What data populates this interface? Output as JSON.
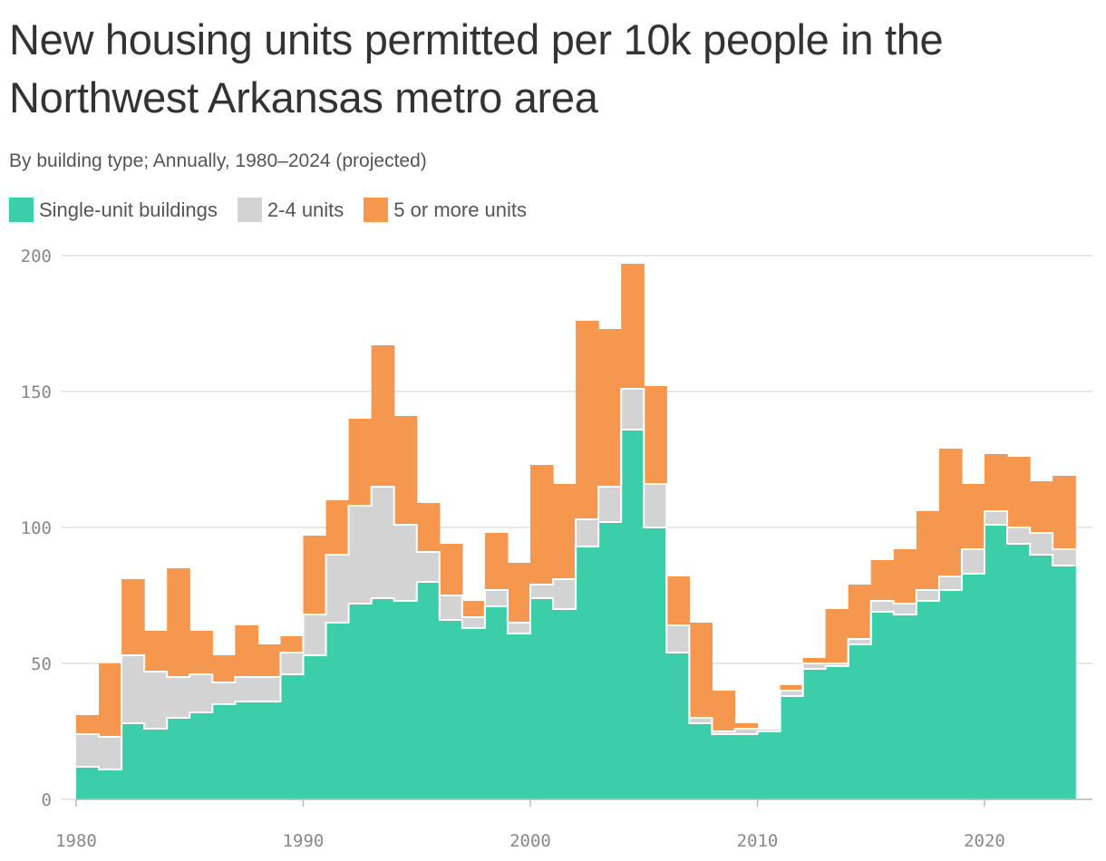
{
  "title": "New housing units permitted per 10k people in the Northwest Arkansas metro area",
  "subtitle": "By building type; Annually, 1980–2024 (projected)",
  "colors": {
    "single": "#3ccea9",
    "two_to_four": "#d3d3d3",
    "five_plus": "#f5974e",
    "grid": "#e0e0e0",
    "axis": "#bbbbbb"
  },
  "chart_data": {
    "type": "area",
    "step": true,
    "stacked": true,
    "title": "New housing units permitted per 10k people in the Northwest Arkansas metro area",
    "subtitle": "By building type; Annually, 1980–2024 (projected)",
    "xlabel": "",
    "ylabel": "",
    "ylim": [
      0,
      200
    ],
    "xlim": [
      1980,
      2024.5
    ],
    "yticks": [
      0,
      50,
      100,
      150,
      200
    ],
    "xticks": [
      1980,
      1990,
      2000,
      2010,
      2020
    ],
    "grid": true,
    "legend_position": "top-left",
    "x": [
      1980,
      1981,
      1982,
      1983,
      1984,
      1985,
      1986,
      1987,
      1988,
      1989,
      1990,
      1991,
      1992,
      1993,
      1994,
      1995,
      1996,
      1997,
      1998,
      1999,
      2000,
      2001,
      2002,
      2003,
      2004,
      2005,
      2006,
      2007,
      2008,
      2009,
      2010,
      2011,
      2012,
      2013,
      2014,
      2015,
      2016,
      2017,
      2018,
      2019,
      2020,
      2021,
      2022,
      2023
    ],
    "series": [
      {
        "name": "Single-unit buildings",
        "color": "#3ccea9",
        "values": [
          12,
          11,
          28,
          26,
          30,
          32,
          35,
          36,
          36,
          46,
          53,
          65,
          72,
          74,
          73,
          80,
          66,
          63,
          71,
          61,
          74,
          70,
          93,
          102,
          136,
          100,
          54,
          28,
          24,
          24,
          25,
          38,
          48,
          49,
          57,
          69,
          68,
          73,
          77,
          83,
          101,
          94,
          90,
          86
        ]
      },
      {
        "name": "2-4 units",
        "color": "#d3d3d3",
        "values": [
          12,
          12,
          25,
          21,
          15,
          14,
          8,
          9,
          9,
          8,
          15,
          25,
          36,
          41,
          28,
          11,
          9,
          4,
          6,
          4,
          5,
          11,
          10,
          13,
          15,
          16,
          10,
          2,
          1,
          2,
          1,
          2,
          2,
          1,
          2,
          4,
          4,
          4,
          5,
          9,
          5,
          6,
          8,
          6
        ]
      },
      {
        "name": "5 or more units",
        "color": "#f5974e",
        "values": [
          7,
          27,
          28,
          15,
          40,
          16,
          10,
          19,
          12,
          6,
          29,
          20,
          32,
          52,
          40,
          18,
          19,
          6,
          21,
          22,
          44,
          35,
          73,
          58,
          46,
          36,
          18,
          35,
          15,
          2,
          0,
          2,
          2,
          20,
          20,
          15,
          20,
          29,
          47,
          24,
          21,
          26,
          19,
          27
        ]
      }
    ]
  }
}
